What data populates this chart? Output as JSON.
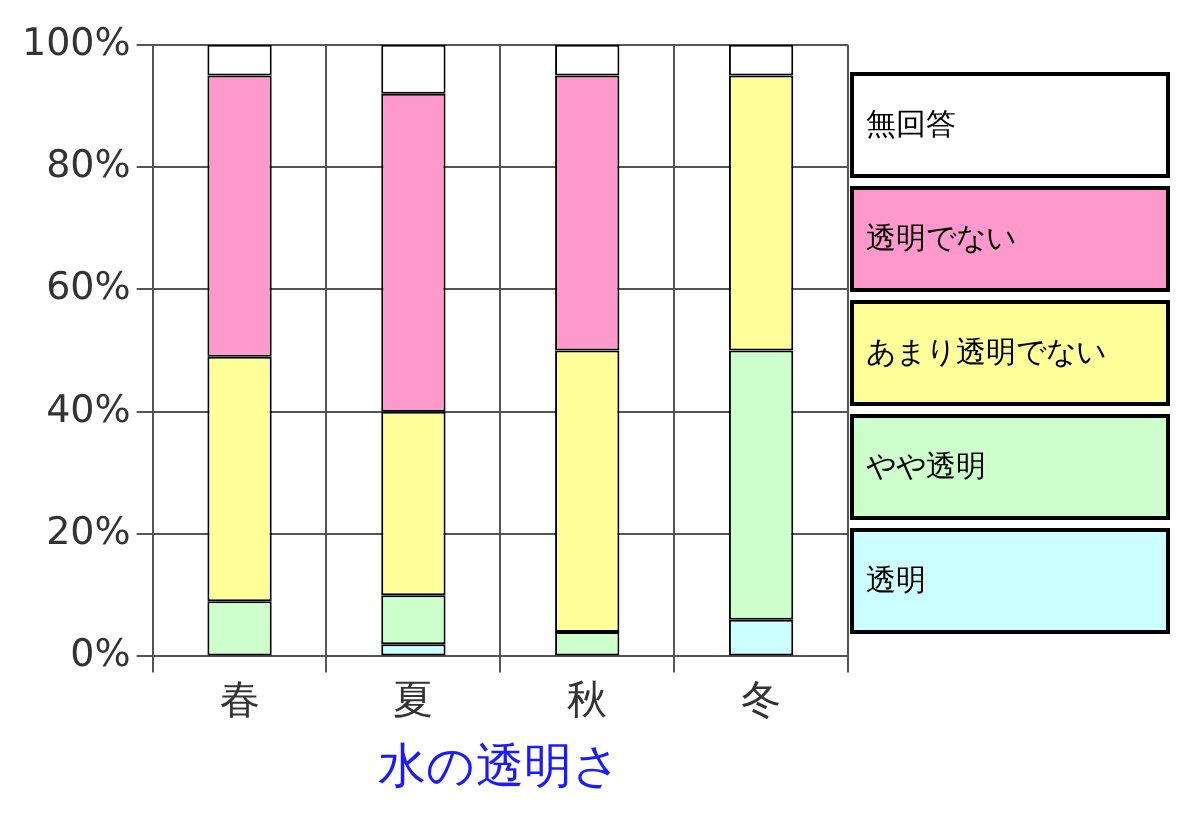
{
  "chart_data": {
    "type": "bar",
    "stacked": true,
    "xlabel": "水の透明さ",
    "categories": [
      "春",
      "夏",
      "秋",
      "冬"
    ],
    "series": [
      {
        "name": "透明",
        "color": "#ccffff",
        "values": [
          0,
          2,
          0,
          6
        ]
      },
      {
        "name": "やや透明",
        "color": "#ccffcc",
        "values": [
          9,
          8,
          4,
          44
        ]
      },
      {
        "name": "あまり透明でない",
        "color": "#ffff99",
        "values": [
          40,
          30,
          46,
          45
        ]
      },
      {
        "name": "透明でない",
        "color": "#ff99cc",
        "values": [
          46,
          52,
          45,
          0
        ]
      },
      {
        "name": "無回答",
        "color": "#ffffff",
        "values": [
          5,
          8,
          5,
          5
        ]
      }
    ],
    "ylim": [
      0,
      100
    ],
    "yticks": [
      {
        "value": 0,
        "label": "0%"
      },
      {
        "value": 20,
        "label": "20%"
      },
      {
        "value": 40,
        "label": "40%"
      },
      {
        "value": 60,
        "label": "60%"
      },
      {
        "value": 80,
        "label": "80%"
      },
      {
        "value": 100,
        "label": "100%"
      }
    ],
    "grid": true,
    "legend": "right"
  }
}
